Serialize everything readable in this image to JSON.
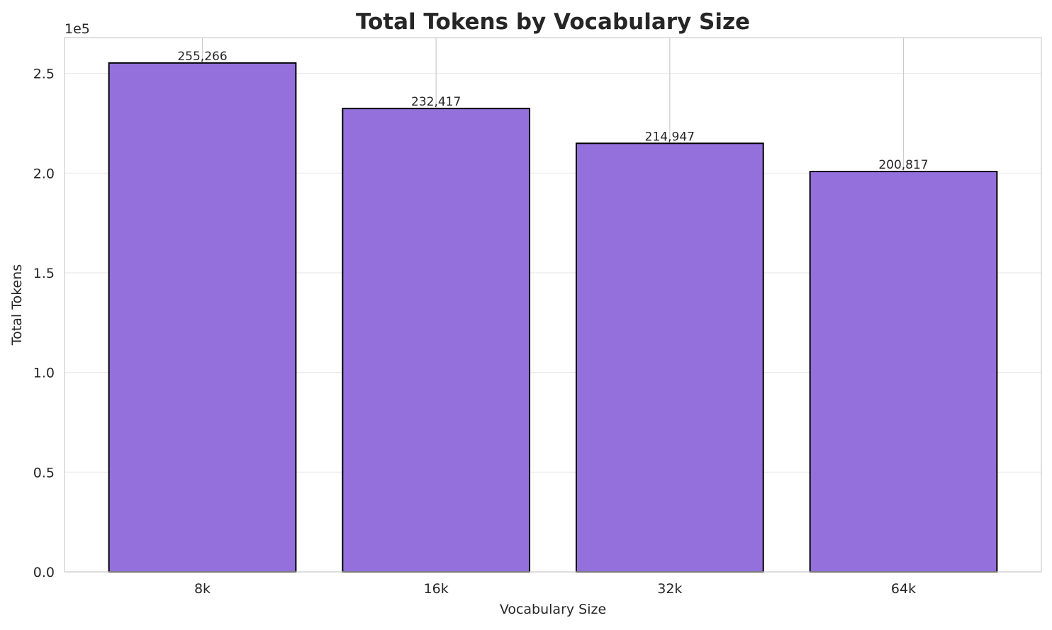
{
  "chart_data": {
    "type": "bar",
    "title": "Total Tokens by Vocabulary Size",
    "xlabel": "Vocabulary Size",
    "ylabel": "Total Tokens",
    "offset_label": "1e5",
    "categories": [
      "8k",
      "16k",
      "32k",
      "64k"
    ],
    "values": [
      255266,
      232417,
      214947,
      200817
    ],
    "data_labels": [
      "255,266",
      "232,417",
      "214,947",
      "200,817"
    ],
    "ylim": [
      0,
      268000
    ],
    "yticks": [
      0,
      50000,
      100000,
      150000,
      200000,
      250000
    ],
    "ytick_labels": [
      "0.0",
      "0.5",
      "1.0",
      "1.5",
      "2.0",
      "2.5"
    ],
    "grid": true,
    "colors": {
      "bar": "#9370DB",
      "edge": "#000000"
    }
  }
}
